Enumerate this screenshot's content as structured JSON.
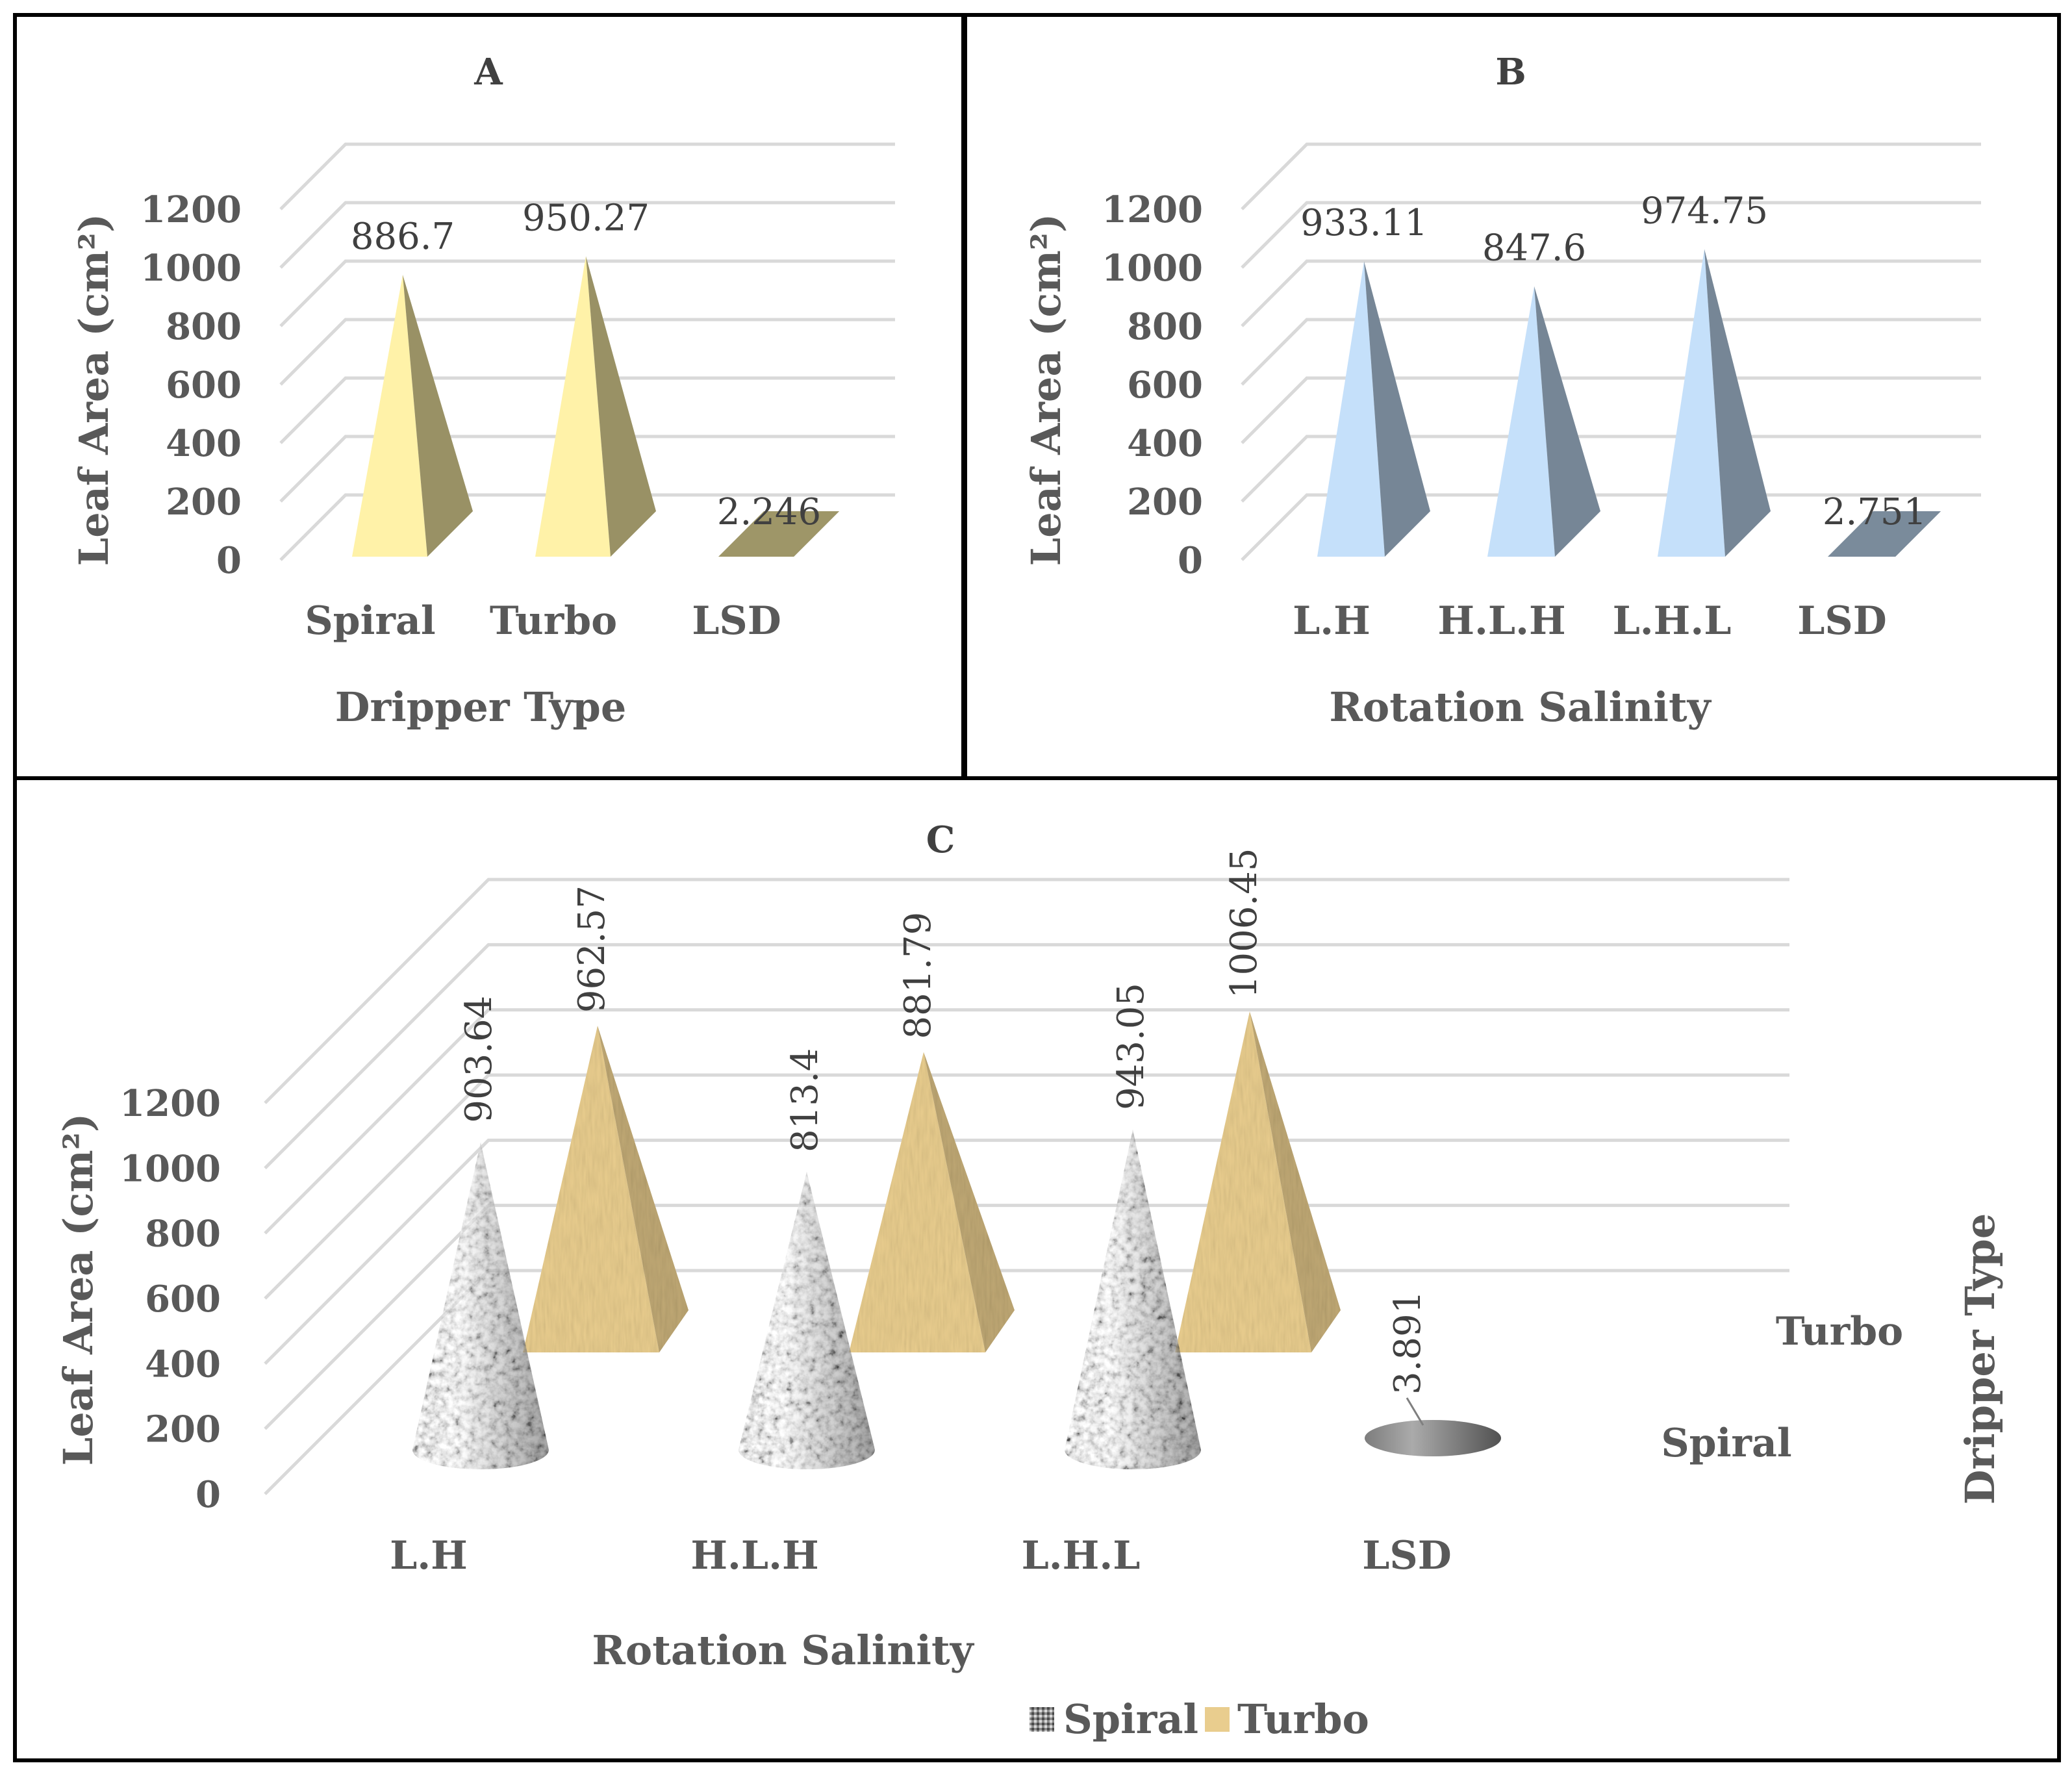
{
  "chart_data": [
    {
      "type": "bar",
      "shape": "pyramid",
      "title": "A",
      "xlabel": "Dripper Type",
      "ylabel": "Leaf Area (cm²)",
      "ylim": [
        0,
        1200
      ],
      "yticks": [
        0,
        200,
        400,
        600,
        800,
        1000,
        1200
      ],
      "categories": [
        "Spiral",
        "Turbo",
        "LSD"
      ],
      "values": [
        886.7,
        950.27,
        2.246
      ],
      "value_labels": [
        "886.7",
        "950.27",
        "2.246"
      ],
      "color": "#FFF2A8",
      "grid": true
    },
    {
      "type": "bar",
      "shape": "pyramid",
      "title": "B",
      "xlabel": "Rotation Salinity",
      "ylabel": "Leaf Area (cm²)",
      "ylim": [
        0,
        1200
      ],
      "yticks": [
        0,
        200,
        400,
        600,
        800,
        1000,
        1200
      ],
      "categories": [
        "L.H",
        "H.L.H",
        "L.H.L",
        "LSD"
      ],
      "values": [
        933.11,
        847.6,
        974.75,
        2.751
      ],
      "value_labels": [
        "933.11",
        "847.6",
        "974.75",
        "2.751"
      ],
      "color": "#C5E0FA",
      "grid": true
    },
    {
      "type": "bar",
      "shape": "3d-cone-pyramid",
      "title": "C",
      "xlabel": "Rotation Salinity",
      "ylabel": "Leaf Area (cm²)",
      "zlabel": "Dripper Type",
      "ylim": [
        0,
        1200
      ],
      "yticks": [
        0,
        200,
        400,
        600,
        800,
        1000,
        1200
      ],
      "categories": [
        "L.H",
        "H.L.H",
        "L.H.L",
        "LSD"
      ],
      "depth_categories": [
        "Spiral",
        "Turbo"
      ],
      "series": [
        {
          "name": "Spiral",
          "values": [
            903.64,
            813.4,
            943.05,
            3.891
          ],
          "value_labels": [
            "903.64",
            "813.4",
            "943.05",
            "3.891"
          ],
          "color": "#9a9a9a"
        },
        {
          "name": "Turbo",
          "values": [
            962.57,
            881.79,
            1006.45,
            null
          ],
          "value_labels": [
            "962.57",
            "881.79",
            "1006.45",
            ""
          ],
          "color": "#E9CD8E"
        }
      ],
      "legend": "bottom",
      "grid": true
    }
  ]
}
